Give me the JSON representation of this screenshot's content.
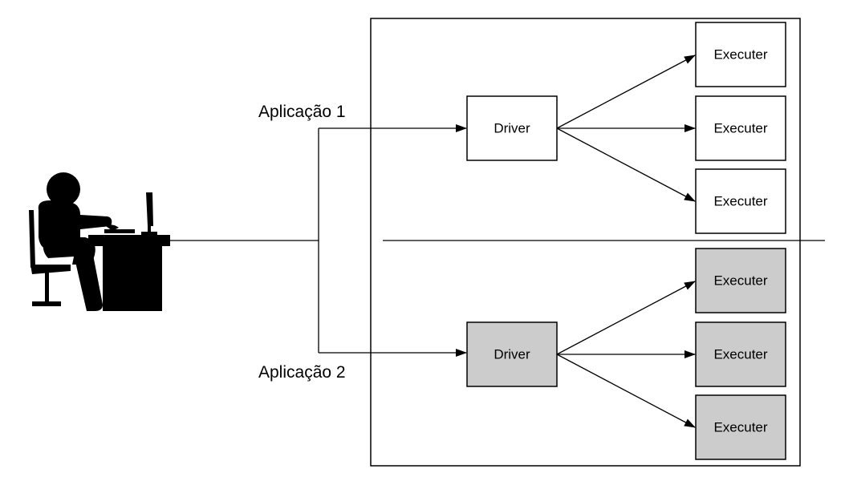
{
  "applications": [
    {
      "label": "Aplicação 1",
      "driver_label": "Driver",
      "executers": [
        "Executer",
        "Executer",
        "Executer"
      ],
      "fill": "#ffffff"
    },
    {
      "label": "Aplicação 2",
      "driver_label": "Driver",
      "executers": [
        "Executer",
        "Executer",
        "Executer"
      ],
      "fill": "#cccccc"
    }
  ],
  "colors": {
    "stroke": "#000000",
    "highlight": "#cccccc"
  },
  "icons": {
    "user": "user-at-desk-icon"
  }
}
